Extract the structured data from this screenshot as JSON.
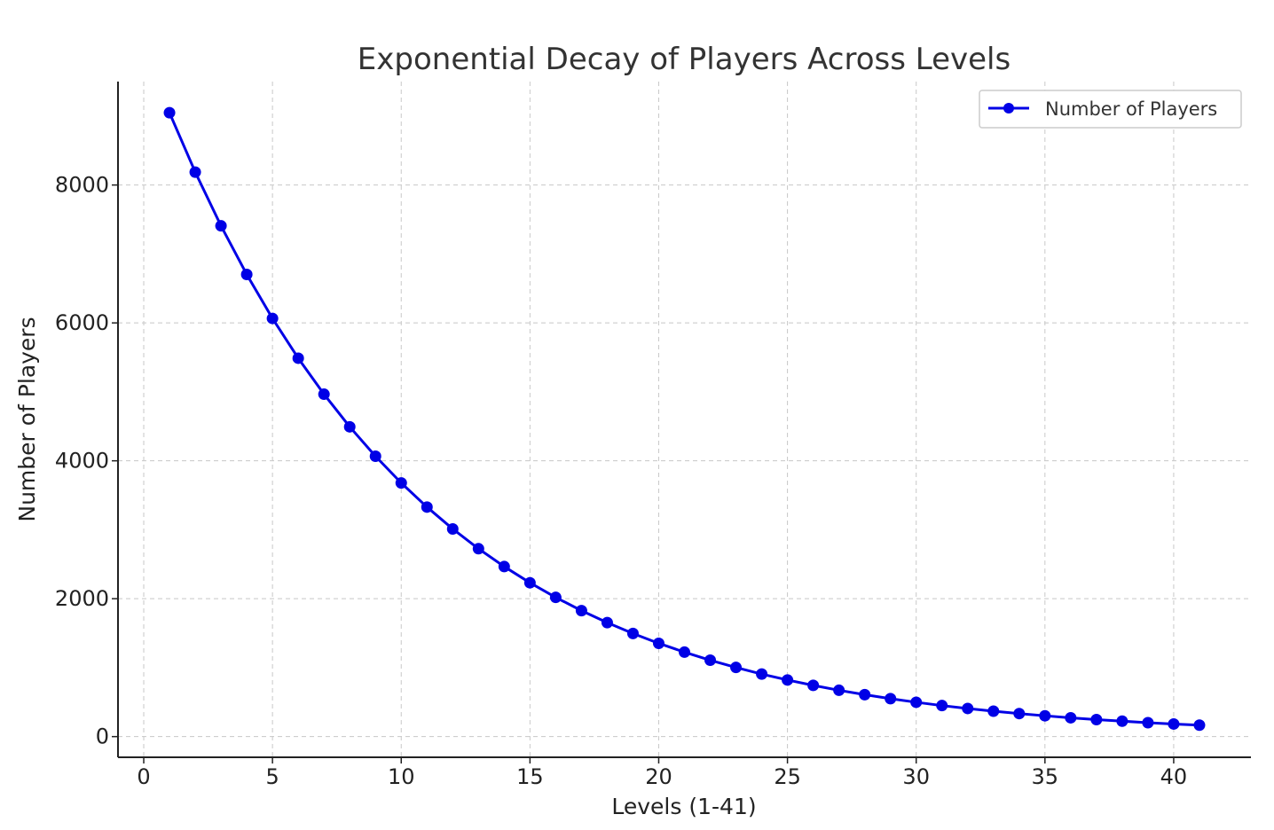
{
  "chart_data": {
    "type": "line",
    "title": "Exponential Decay of Players Across Levels",
    "xlabel": "Levels (1-41)",
    "ylabel": "Number of Players",
    "xlim": [
      -1,
      43
    ],
    "ylim": [
      -300,
      9500
    ],
    "xticks": [
      0,
      5,
      10,
      15,
      20,
      25,
      30,
      35,
      40
    ],
    "yticks": [
      0,
      2000,
      4000,
      6000,
      8000
    ],
    "grid": true,
    "legend_position": "top-right",
    "colors": {
      "series": "#0000e6"
    },
    "series": [
      {
        "name": "Number of Players",
        "marker": "circle",
        "x": [
          1,
          2,
          3,
          4,
          5,
          6,
          7,
          8,
          9,
          10,
          11,
          12,
          13,
          14,
          15,
          16,
          17,
          18,
          19,
          20,
          21,
          22,
          23,
          24,
          25,
          26,
          27,
          28,
          29,
          30,
          31,
          32,
          33,
          34,
          35,
          36,
          37,
          38,
          39,
          40,
          41
        ],
        "values": [
          9048,
          8187,
          7408,
          6703,
          6065,
          5488,
          4966,
          4493,
          4066,
          3679,
          3329,
          3012,
          2725,
          2466,
          2231,
          2019,
          1827,
          1653,
          1496,
          1353,
          1225,
          1108,
          1003,
          907,
          821,
          743,
          672,
          608,
          550,
          498,
          450,
          408,
          369,
          334,
          302,
          273,
          247,
          224,
          202,
          183,
          166
        ]
      }
    ]
  }
}
